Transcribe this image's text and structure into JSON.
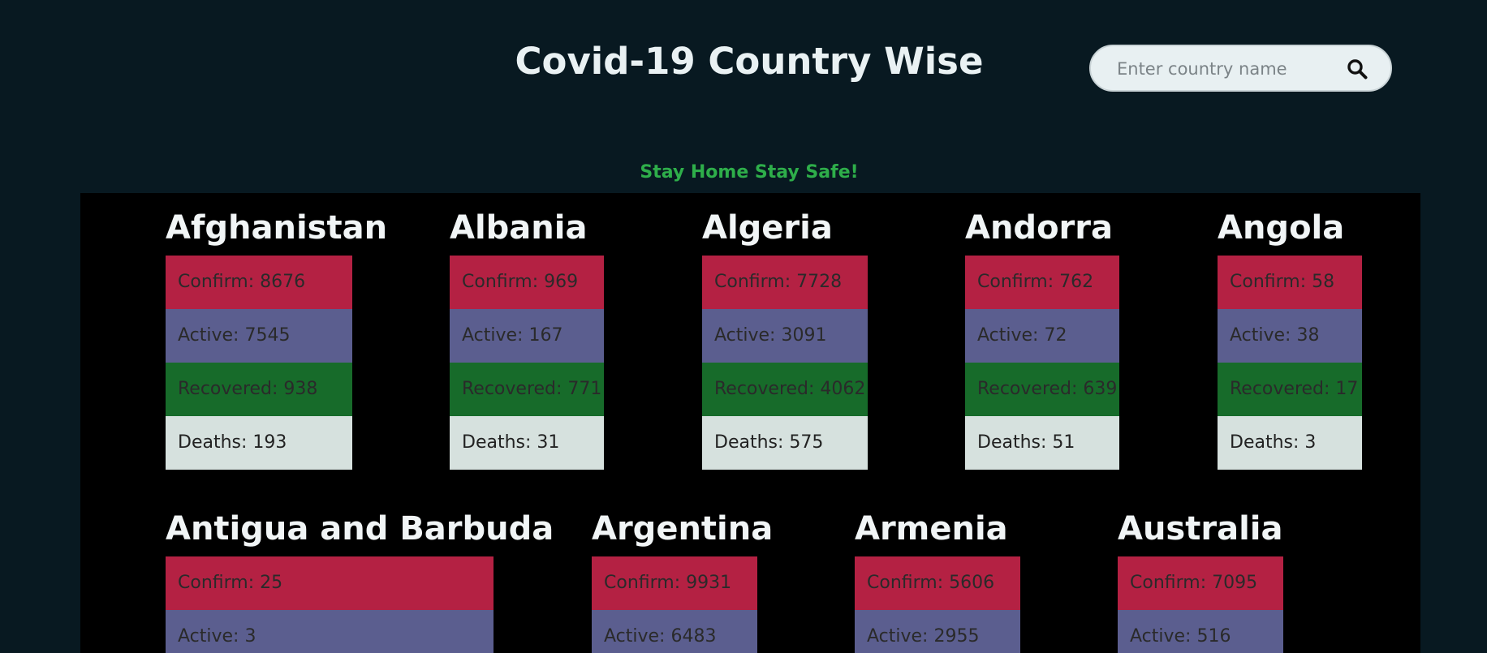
{
  "header": {
    "title": "Covid-19 Country Wise",
    "tagline": "Stay Home Stay Safe!"
  },
  "search": {
    "placeholder": "Enter country name",
    "icon": "search-icon"
  },
  "countries": [
    {
      "name": "Afghanistan",
      "confirm": "Confirm: 8676",
      "active": "Active: 7545",
      "recovered": "Recovered: 938",
      "deaths": "Deaths: 193"
    },
    {
      "name": "Albania",
      "confirm": "Confirm: 969",
      "active": "Active: 167",
      "recovered": "Recovered: 771",
      "deaths": "Deaths: 31"
    },
    {
      "name": "Algeria",
      "confirm": "Confirm: 7728",
      "active": "Active: 3091",
      "recovered": "Recovered: 4062",
      "deaths": "Deaths: 575"
    },
    {
      "name": "Andorra",
      "confirm": "Confirm: 762",
      "active": "Active: 72",
      "recovered": "Recovered: 639",
      "deaths": "Deaths: 51"
    },
    {
      "name": "Angola",
      "confirm": "Confirm: 58",
      "active": "Active: 38",
      "recovered": "Recovered: 17",
      "deaths": "Deaths: 3"
    },
    {
      "name": "Antigua and Barbuda",
      "confirm": "Confirm: 25",
      "active": "Active: 3"
    },
    {
      "name": "Argentina",
      "confirm": "Confirm: 9931",
      "active": "Active: 6483"
    },
    {
      "name": "Armenia",
      "confirm": "Confirm: 5606",
      "active": "Active: 2955"
    },
    {
      "name": "Australia",
      "confirm": "Confirm: 7095",
      "active": "Active: 516"
    }
  ],
  "colors": {
    "confirm": "#b42143",
    "active": "#5b5e8f",
    "recovered": "#176b2a",
    "deaths": "#d6e1de",
    "tagline": "#2eae4a",
    "background": "#081921"
  }
}
